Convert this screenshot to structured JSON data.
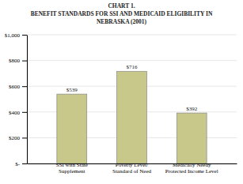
{
  "chart_data": {
    "type": "bar",
    "title": "CHART 1.\nBENEFIT STANDARDS FOR SSI AND MEDICAID ELIGIBILITY IN\nNEBRASKA (2001)",
    "categories": [
      "SSI with State\nSupplement",
      "Poverty Level/\nStandard of Need",
      "Medically Needy\nProtected Income Level"
    ],
    "values": [
      539,
      716,
      392
    ],
    "value_labels": [
      "$539",
      "$716",
      "$392"
    ],
    "data_labels": true,
    "color": "#c8c88a",
    "ylim": [
      0,
      1000
    ],
    "yticks": [
      {
        "value": 0,
        "label": "$-"
      },
      {
        "value": 200,
        "label": "$200"
      },
      {
        "value": 400,
        "label": "$400"
      },
      {
        "value": 600,
        "label": "$600"
      },
      {
        "value": 800,
        "label": "$800"
      },
      {
        "value": 1000,
        "label": "$1,000"
      }
    ],
    "grid": true
  }
}
